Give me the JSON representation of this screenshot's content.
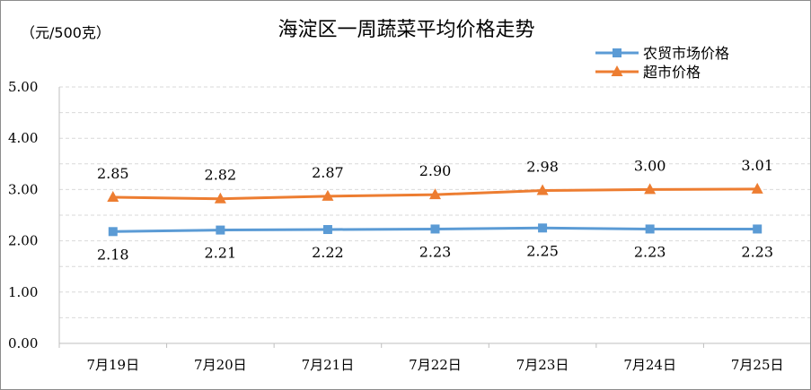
{
  "chart_data": {
    "type": "line",
    "title": "海淀区一周蔬菜平均价格走势",
    "unit_label": "（元/500克）",
    "categories": [
      "7月19日",
      "7月20日",
      "7月21日",
      "7月22日",
      "7月23日",
      "7月24日",
      "7月25日"
    ],
    "series": [
      {
        "name": "农贸市场价格",
        "color": "#5b9bd5",
        "marker": "square",
        "values": [
          2.18,
          2.21,
          2.22,
          2.23,
          2.25,
          2.23,
          2.23
        ],
        "value_labels": [
          "2.18",
          "2.21",
          "2.22",
          "2.23",
          "2.25",
          "2.23",
          "2.23"
        ],
        "label_position": "below"
      },
      {
        "name": "超市价格",
        "color": "#ed7d31",
        "marker": "triangle",
        "values": [
          2.85,
          2.82,
          2.87,
          2.9,
          2.98,
          3.0,
          3.01
        ],
        "value_labels": [
          "2.85",
          "2.82",
          "2.87",
          "2.90",
          "2.98",
          "3.00",
          "3.01"
        ],
        "label_position": "above"
      }
    ],
    "ylim": [
      0,
      5
    ],
    "yticks": [
      "0.00",
      "1.00",
      "2.00",
      "3.00",
      "4.00",
      "5.00"
    ],
    "grid": true,
    "legend_position": "top-right"
  }
}
